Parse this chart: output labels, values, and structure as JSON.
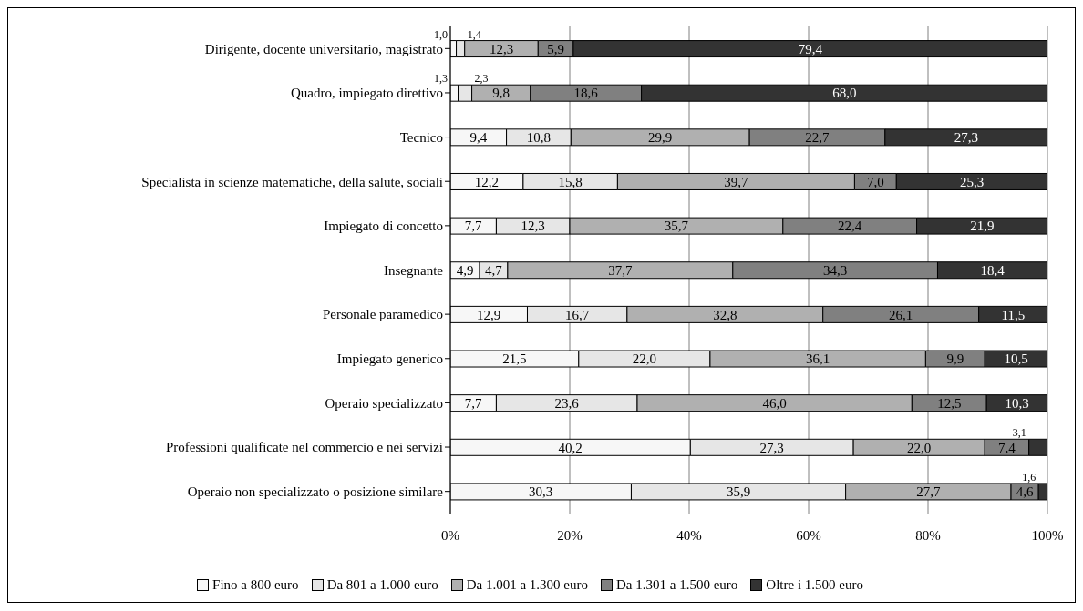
{
  "chart_data": {
    "type": "bar",
    "orientation": "horizontal",
    "stacked": true,
    "categories": [
      "Dirigente, docente universitario, magistrato",
      "Quadro, impiegato direttivo",
      "Tecnico",
      "Specialista in scienze matematiche, della salute, sociali",
      "Impiegato di concetto",
      "Insegnante",
      "Personale paramedico",
      "Impiegato generico",
      "Operaio specializzato",
      "Professioni qualificate nel commercio e nei servizi",
      "Operaio non specializzato o posizione similare"
    ],
    "series": [
      {
        "name": "Fino a 800 euro",
        "color": "#f7f7f7",
        "values": [
          1.0,
          1.3,
          9.4,
          12.2,
          7.7,
          4.9,
          12.9,
          21.5,
          7.7,
          40.2,
          30.3
        ],
        "value_labels": [
          "1,0",
          "1,3",
          "9,4",
          "12,2",
          "7,7",
          "4,9",
          "12,9",
          "21,5",
          "7,7",
          "40,2",
          "30,3"
        ]
      },
      {
        "name": "Da 801 a 1.000 euro",
        "color": "#e6e6e6",
        "values": [
          1.4,
          2.3,
          10.8,
          15.8,
          12.3,
          4.7,
          16.7,
          22.0,
          23.6,
          27.3,
          35.9
        ],
        "value_labels": [
          "1,4",
          "2,3",
          "10,8",
          "15,8",
          "12,3",
          "4,7",
          "16,7",
          "22,0",
          "23,6",
          "27,3",
          "35,9"
        ]
      },
      {
        "name": "Da 1.001 a 1.300 euro",
        "color": "#b0b0b0",
        "values": [
          12.3,
          9.8,
          29.9,
          39.7,
          35.7,
          37.7,
          32.8,
          36.1,
          46.0,
          22.0,
          27.7
        ],
        "value_labels": [
          "12,3",
          "9,8",
          "29,9",
          "39,7",
          "35,7",
          "37,7",
          "32,8",
          "36,1",
          "46,0",
          "22,0",
          "27,7"
        ]
      },
      {
        "name": "Da 1.301 a 1.500 euro",
        "color": "#808080",
        "values": [
          5.9,
          18.6,
          22.7,
          7.0,
          22.4,
          34.3,
          26.1,
          9.9,
          12.5,
          7.4,
          4.6
        ],
        "value_labels": [
          "5,9",
          "18,6",
          "22,7",
          "7,0",
          "22,4",
          "34,3",
          "26,1",
          "9,9",
          "12,5",
          "7,4",
          "4,6"
        ]
      },
      {
        "name": "Oltre i 1.500 euro",
        "color": "#333333",
        "values": [
          79.4,
          68.0,
          27.3,
          25.3,
          21.9,
          18.4,
          11.5,
          10.5,
          10.3,
          3.1,
          1.6
        ],
        "value_labels": [
          "79,4",
          "68,0",
          "27,3",
          "25,3",
          "21,9",
          "18,4",
          "11,5",
          "10,5",
          "10,3",
          "3,1",
          "1,6"
        ]
      }
    ],
    "xlim": [
      0,
      100
    ],
    "xticks": [
      {
        "value": 0,
        "label": "0%"
      },
      {
        "value": 20,
        "label": "20%"
      },
      {
        "value": 40,
        "label": "40%"
      },
      {
        "value": 60,
        "label": "60%"
      },
      {
        "value": 80,
        "label": "80%"
      },
      {
        "value": 100,
        "label": "100%"
      }
    ],
    "grid": "x",
    "legend": "bottom"
  }
}
